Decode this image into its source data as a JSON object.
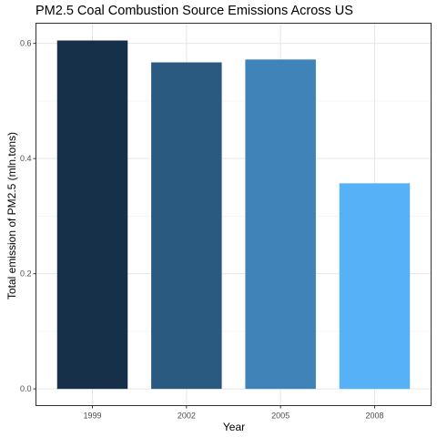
{
  "chart_data": {
    "type": "bar",
    "title": "PM2.5 Coal Combustion Source Emissions Across US",
    "xlabel": "Year",
    "ylabel": "Total emission of PM2.5 (mln.tons)",
    "categories": [
      "1999",
      "2002",
      "2005",
      "2008"
    ],
    "values": [
      0.605,
      0.567,
      0.572,
      0.357
    ],
    "bar_colors": [
      "#17304a",
      "#2a5a80",
      "#3f83b9",
      "#56b1f7"
    ],
    "ylim": [
      -0.029,
      0.635
    ],
    "yticks": [
      0.0,
      0.2,
      0.4,
      0.6
    ],
    "ytick_labels": [
      "0.0",
      "0.2",
      "0.4",
      "0.6"
    ],
    "grid": true,
    "panel_border": true,
    "legend": "none"
  }
}
